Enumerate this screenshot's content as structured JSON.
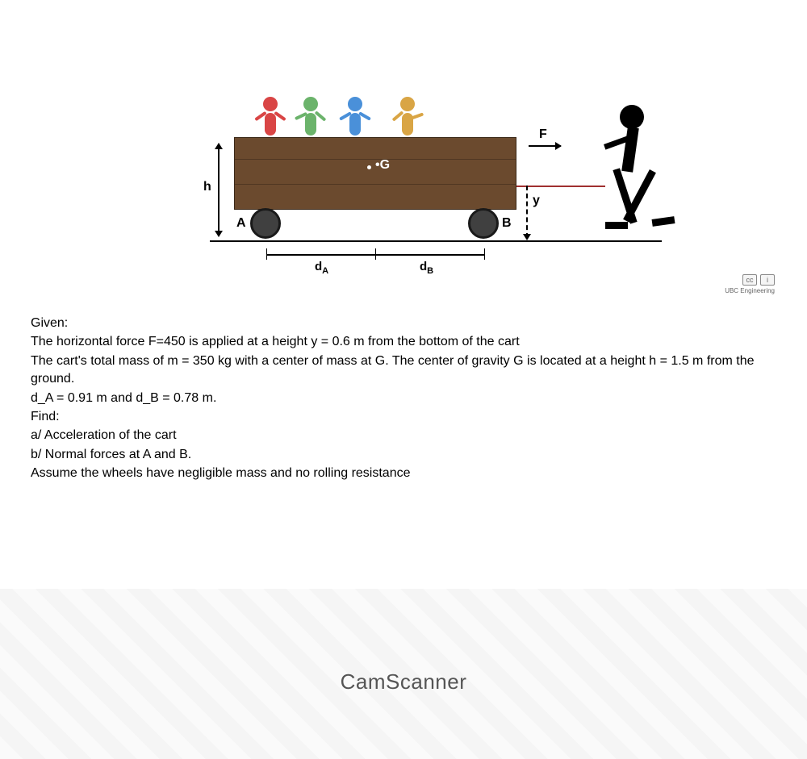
{
  "diagram": {
    "labels": {
      "G": "•G",
      "A": "A",
      "B": "B",
      "h": "h",
      "y": "y",
      "F": "F",
      "dA": "d",
      "dA_sub": "A",
      "dB": "d",
      "dB_sub": "B"
    },
    "colors": {
      "cart": "#6b4a2e",
      "wheel": "#404040",
      "kid1": "#d94545",
      "kid2": "#6bb36b",
      "kid3": "#4a90d9",
      "kid4": "#d9a545",
      "puller": "#000000",
      "rope": "#a03030"
    }
  },
  "badge": {
    "cc": "cc",
    "info": "i",
    "text": "UBC Engineering"
  },
  "text": {
    "given_heading": "Given:",
    "line1": "The horizontal force F=450 is applied at a height y = 0.6 m from the bottom of the cart",
    "line2": "The cart's total mass of m = 350 kg with a center of mass at G. The center of gravity G is located at a height h = 1.5 m from the ground.",
    "line3": "d_A = 0.91 m and d_B = 0.78 m.",
    "find_heading": "Find:",
    "find_a": "a/ Acceleration of the cart",
    "find_b": "b/ Normal forces at A and B.",
    "assume": "Assume the wheels have negligible mass and no rolling resistance"
  },
  "watermark": "CamScanner"
}
